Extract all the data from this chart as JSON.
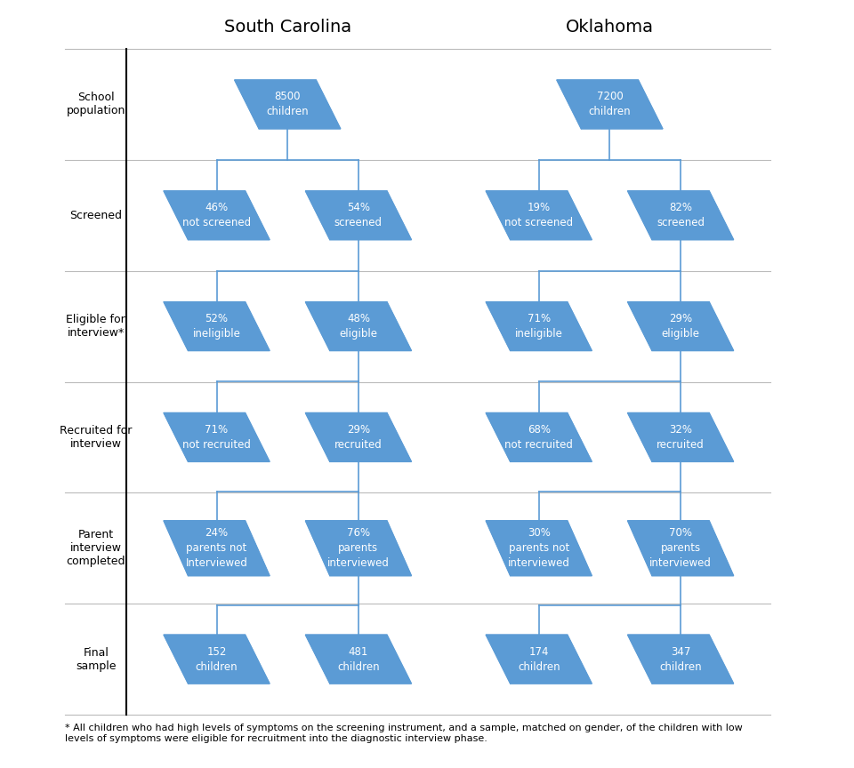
{
  "title_sc": "South Carolina",
  "title_ok": "Oklahoma",
  "diamond_color": "#5B9BD5",
  "diamond_edge_color": "#5B9BD5",
  "text_color": "white",
  "label_color": "#222222",
  "line_color": "#5B9BD5",
  "bg_color": "white",
  "grid_line_color": "#BBBBBB",
  "footnote": "* All children who had high levels of symptoms on the screening instrument, and a sample, matched on gender, of the children with low\nlevels of symptoms were eligible for recruitment into the diagnostic interview phase.",
  "row_labels": [
    "School\npopulation",
    "Screened",
    "Eligible for\ninterview*",
    "Recruited for\ninterview",
    "Parent\ninterview\ncompleted",
    "Final\nsample"
  ],
  "sc_boxes": [
    [
      {
        "line1": "8500",
        "line2": "children"
      }
    ],
    [
      {
        "line1": "46%",
        "line2": "not screened"
      },
      {
        "line1": "54%",
        "line2": "screened"
      }
    ],
    [
      {
        "line1": "52%",
        "line2": "ineligible"
      },
      {
        "line1": "48%",
        "line2": "eligible"
      }
    ],
    [
      {
        "line1": "71%",
        "line2": "not recruited"
      },
      {
        "line1": "29%",
        "line2": "recruited"
      }
    ],
    [
      {
        "line1": "24%",
        "line2": "parents not\nInterviewed"
      },
      {
        "line1": "76%",
        "line2": "parents\ninterviewed"
      }
    ],
    [
      {
        "line1": "152",
        "line2": "children"
      },
      {
        "line1": "481",
        "line2": "children"
      }
    ]
  ],
  "ok_boxes": [
    [
      {
        "line1": "7200",
        "line2": "children"
      }
    ],
    [
      {
        "line1": "19%",
        "line2": "not screened"
      },
      {
        "line1": "82%",
        "line2": "screened"
      }
    ],
    [
      {
        "line1": "71%",
        "line2": "ineligible"
      },
      {
        "line1": "29%",
        "line2": "eligible"
      }
    ],
    [
      {
        "line1": "68%",
        "line2": "not recruited"
      },
      {
        "line1": "32%",
        "line2": "recruited"
      }
    ],
    [
      {
        "line1": "30%",
        "line2": "parents not\ninterviewed"
      },
      {
        "line1": "70%",
        "line2": "parents\ninterviewed"
      }
    ],
    [
      {
        "line1": "174",
        "line2": "children"
      },
      {
        "line1": "347",
        "line2": "children"
      }
    ]
  ]
}
